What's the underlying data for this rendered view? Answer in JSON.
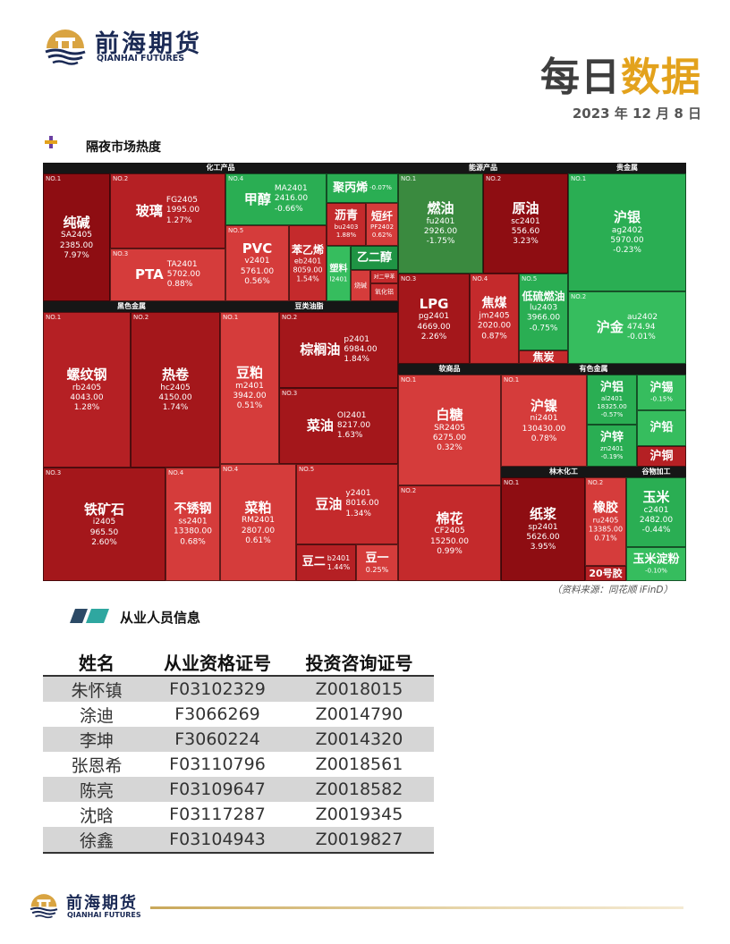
{
  "header": {
    "brand_cn": "前海期货",
    "brand_en": "QIANHAI FUTURES",
    "title_part1": "每日",
    "title_part2": "数据",
    "date": "2023 年 12 月 8 日",
    "accent_color": "#e3a21c"
  },
  "market_section": {
    "title": "隔夜市场热度",
    "source": "（资料来源：同花顺 iFinD）",
    "groups": [
      {
        "name": "化工产品",
        "tiles": [
          {
            "no": "NO.1",
            "name": "纯碱",
            "code": "SA2405",
            "price": "2385.00",
            "change": "7.97%"
          },
          {
            "no": "NO.2",
            "name": "玻璃",
            "code": "FG2405",
            "price": "1995.00",
            "change": "1.27%"
          },
          {
            "no": "NO.3",
            "name": "PTA",
            "code": "TA2401",
            "price": "5702.00",
            "change": "0.88%"
          },
          {
            "no": "NO.4",
            "name": "甲醇",
            "code": "MA2401",
            "price": "2416.00",
            "change": "-0.66%"
          },
          {
            "no": "NO.5",
            "name": "PVC",
            "code": "v2401",
            "price": "5761.00",
            "change": "0.56%"
          },
          {
            "name": "苯乙烯",
            "code": "eb2401",
            "price": "8059.00",
            "change": "1.54%"
          },
          {
            "name": "聚丙烯",
            "change": "-0.07%"
          },
          {
            "name": "沥青",
            "code": "bu2403",
            "change": "1.88%"
          },
          {
            "name": "短纤",
            "code": "PF2402",
            "change": "0.62%"
          },
          {
            "name": "塑料",
            "code": "l2401"
          },
          {
            "name": "乙二醇"
          },
          {
            "name": "烧碱"
          },
          {
            "name": "对二甲苯"
          },
          {
            "name": "氧化铝"
          }
        ]
      },
      {
        "name": "能源产品",
        "tiles": [
          {
            "no": "NO.1",
            "name": "燃油",
            "code": "fu2401",
            "price": "2926.00",
            "change": "-1.75%"
          },
          {
            "no": "NO.2",
            "name": "原油",
            "code": "sc2401",
            "price": "556.60",
            "change": "3.23%"
          },
          {
            "no": "NO.3",
            "name": "LPG",
            "code": "pg2401",
            "price": "4669.00",
            "change": "2.26%"
          },
          {
            "no": "NO.4",
            "name": "焦煤",
            "code": "jm2405",
            "price": "2020.00",
            "change": "0.87%"
          },
          {
            "no": "NO.5",
            "name": "低硫燃油",
            "code": "lu2403",
            "price": "3966.00",
            "change": "-0.75%"
          },
          {
            "name": "焦炭"
          }
        ]
      },
      {
        "name": "贵金属",
        "tiles": [
          {
            "no": "NO.1",
            "name": "沪银",
            "code": "ag2402",
            "price": "5970.00",
            "change": "-0.23%"
          },
          {
            "no": "NO.2",
            "name": "沪金",
            "code": "au2402",
            "price": "474.94",
            "change": "-0.01%"
          }
        ]
      },
      {
        "name": "黑色金属",
        "tiles": [
          {
            "no": "NO.1",
            "name": "螺纹钢",
            "code": "rb2405",
            "price": "4043.00",
            "change": "1.28%"
          },
          {
            "no": "NO.2",
            "name": "热卷",
            "code": "hc2405",
            "price": "4150.00",
            "change": "1.74%"
          },
          {
            "no": "NO.3",
            "name": "铁矿石",
            "code": "i2405",
            "price": "965.50",
            "change": "2.60%"
          },
          {
            "no": "NO.4",
            "name": "不锈钢",
            "code": "ss2401",
            "price": "13380.00",
            "change": "0.68%"
          }
        ]
      },
      {
        "name": "豆类油脂",
        "tiles": [
          {
            "no": "NO.1",
            "name": "豆粕",
            "code": "m2401",
            "price": "3942.00",
            "change": "0.51%"
          },
          {
            "no": "NO.2",
            "name": "棕榈油",
            "code": "p2401",
            "price": "6984.00",
            "change": "1.84%"
          },
          {
            "no": "NO.3",
            "name": "菜油",
            "code": "OI2401",
            "price": "8217.00",
            "change": "1.63%"
          },
          {
            "no": "NO.4",
            "name": "菜粕",
            "code": "RM2401",
            "price": "2807.00",
            "change": "0.61%"
          },
          {
            "no": "NO.5",
            "name": "豆油",
            "code": "y2401",
            "price": "8016.00",
            "change": "1.34%"
          },
          {
            "name": "豆二",
            "code": "b2401",
            "change": "1.44%"
          },
          {
            "name": "豆一",
            "change": "0.25%"
          }
        ]
      },
      {
        "name": "软商品",
        "tiles": [
          {
            "no": "NO.1",
            "name": "白糖",
            "code": "SR2405",
            "price": "6275.00",
            "change": "0.32%"
          },
          {
            "no": "NO.2",
            "name": "棉花",
            "code": "CF2405",
            "price": "15250.00",
            "change": "0.99%"
          }
        ]
      },
      {
        "name": "有色金属",
        "tiles": [
          {
            "no": "NO.1",
            "name": "沪镍",
            "code": "ni2401",
            "price": "130430.00",
            "change": "0.78%"
          },
          {
            "name": "沪铝",
            "code": "al2401",
            "price": "18325.00",
            "change": "-0.57%"
          },
          {
            "name": "沪锡",
            "change": "-0.15%"
          },
          {
            "name": "沪锌",
            "code": "zn2401",
            "change": "-0.19%"
          },
          {
            "name": "沪铅"
          },
          {
            "name": "沪铜"
          }
        ]
      },
      {
        "name": "林木化工",
        "tiles": [
          {
            "no": "NO.1",
            "name": "纸浆",
            "code": "sp2401",
            "price": "5626.00",
            "change": "3.95%"
          },
          {
            "no": "NO.2",
            "name": "橡胶",
            "code": "ru2405",
            "price": "13385.00",
            "change": "0.71%"
          },
          {
            "name": "20号胶"
          }
        ]
      },
      {
        "name": "谷物加工",
        "tiles": [
          {
            "name": "玉米",
            "code": "c2401",
            "price": "2482.00",
            "change": "-0.44%"
          },
          {
            "name": "玉米淀粉",
            "change": "-0.10%"
          }
        ]
      }
    ]
  },
  "staff_section": {
    "title": "从业人员信息",
    "headers": [
      "姓名",
      "从业资格证号",
      "投资咨询证号"
    ],
    "rows": [
      [
        "朱怀镇",
        "F03102329",
        "Z0018015"
      ],
      [
        "涂迪",
        "F3066269",
        "Z0014790"
      ],
      [
        "李坤",
        "F3060224",
        "Z0014320"
      ],
      [
        "张恩希",
        "F03110796",
        "Z0018561"
      ],
      [
        "陈亮",
        "F03109647",
        "Z0018582"
      ],
      [
        "沈晗",
        "F03117287",
        "Z0019345"
      ],
      [
        "徐鑫",
        "F03104943",
        "Z0019827"
      ]
    ]
  },
  "footer": {
    "brand_cn": "前海期货",
    "brand_en": "QIANHAI FUTURES"
  }
}
